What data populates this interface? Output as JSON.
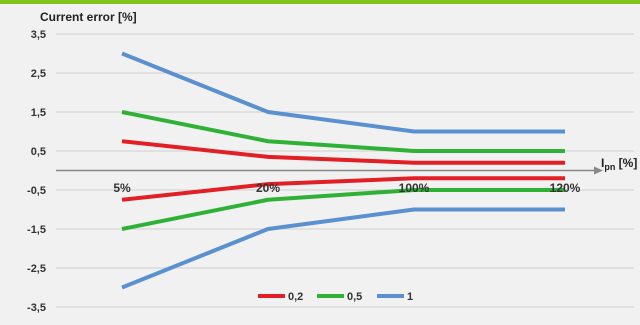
{
  "colors": {
    "top_bar": "#7fc31c",
    "background": "#f1f1f1",
    "grid": "#d0d0d0",
    "axis": "#888888"
  },
  "chart_data": {
    "type": "line",
    "title": "",
    "ylabel": "Current error [%]",
    "xlabel_main": "I",
    "xlabel_sub": "pn",
    "xlabel_unit": " [%]",
    "categories": [
      "5%",
      "20%",
      "100%",
      "120%"
    ],
    "ylim": [
      -3.5,
      3.5
    ],
    "yticks": [
      "3,5",
      "2,5",
      "1,5",
      "0,5",
      "-0,5",
      "-1,5",
      "-2,5",
      "-3,5"
    ],
    "grid": true,
    "legend_position": "bottom",
    "series": [
      {
        "name": "0,2",
        "color": "#e31f26",
        "upper": [
          0.75,
          0.35,
          0.2,
          0.2
        ],
        "lower": [
          -0.75,
          -0.35,
          -0.2,
          -0.2
        ]
      },
      {
        "name": "0,5",
        "color": "#2eb135",
        "upper": [
          1.5,
          0.75,
          0.5,
          0.5
        ],
        "lower": [
          -1.5,
          -0.75,
          -0.5,
          -0.5
        ]
      },
      {
        "name": "1",
        "color": "#5a8fd0",
        "upper": [
          3.0,
          1.5,
          1.0,
          1.0
        ],
        "lower": [
          -3.0,
          -1.5,
          -1.0,
          -1.0
        ]
      }
    ]
  }
}
